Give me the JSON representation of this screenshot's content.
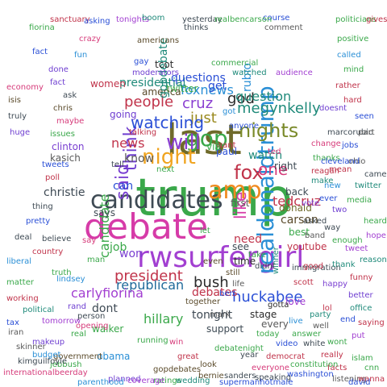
{
  "word_cloud": {
    "words": [
      {
        "text": "trump",
        "color": "#3aa84a"
      },
      {
        "text": "last",
        "color": "#6f6a2a"
      },
      {
        "text": "debate",
        "color": "#d63ba8"
      },
      {
        "text": "candidates",
        "color": "#3e4a54"
      },
      {
        "text": "rwsurfergirl",
        "color": "#a23fd1"
      },
      {
        "text": "amp",
        "color": "#f08a1f"
      },
      {
        "text": "gop",
        "color": "#3aa84a"
      },
      {
        "text": "night",
        "color": "#f0a41f"
      },
      {
        "text": "will",
        "color": "#8a3fd1"
      },
      {
        "text": "realdonaldtrump",
        "color": "#2a8fd6"
      },
      {
        "text": "nights",
        "color": "#7a8a2a"
      },
      {
        "text": "fox",
        "color": "#c0334a"
      },
      {
        "text": "god",
        "color": "#2a2a2a"
      },
      {
        "text": "megynkelly",
        "color": "#1f8a7a"
      },
      {
        "text": "just",
        "color": "#9a8a1f"
      },
      {
        "text": "one",
        "color": "#d63b7a"
      },
      {
        "text": "think",
        "color": "#6f3fd1"
      },
      {
        "text": "like",
        "color": "#d63ba8"
      },
      {
        "text": "said",
        "color": "#7a3fd1"
      },
      {
        "text": "watching",
        "color": "#2a4fd6"
      },
      {
        "text": "people",
        "color": "#c0334a"
      },
      {
        "text": "cruz",
        "color": "#8a3fd1"
      },
      {
        "text": "foxnews",
        "color": "#2a8fd6"
      },
      {
        "text": "question",
        "color": "#1f8a7a"
      },
      {
        "text": "republican",
        "color": "#1f6a9a"
      },
      {
        "text": "president",
        "color": "#c0334a"
      },
      {
        "text": "bush",
        "color": "#2a2a2a"
      },
      {
        "text": "hillary",
        "color": "#3aa84a"
      },
      {
        "text": "huckabee",
        "color": "#2a4fd6"
      },
      {
        "text": "carson",
        "color": "#5a4a2a"
      },
      {
        "text": "donald",
        "color": "#6f6a2a"
      },
      {
        "text": "tedcruz",
        "color": "#c0334a"
      },
      {
        "text": "tonight",
        "color": "#3e4a54"
      },
      {
        "text": "carlyfiorina",
        "color": "#a23fd1"
      },
      {
        "text": "watch",
        "color": "#1f8a7a"
      },
      {
        "text": "rubio",
        "color": "#2a8fd6"
      },
      {
        "text": "christie",
        "color": "#3e4a54"
      },
      {
        "text": "candidate",
        "color": "#3aa84a"
      },
      {
        "text": "news",
        "color": "#c0334a"
      },
      {
        "text": "know",
        "color": "#5a5a5a"
      },
      {
        "text": "can",
        "color": "#2a4fd6"
      },
      {
        "text": "dont",
        "color": "#3e4a54"
      },
      {
        "text": "won",
        "color": "#7a3fd1"
      },
      {
        "text": "need",
        "color": "#c0334a"
      },
      {
        "text": "job",
        "color": "#3aa84a"
      },
      {
        "text": "right",
        "color": "#3e4a54"
      },
      {
        "text": "first",
        "color": "#5a5a5a"
      },
      {
        "text": "time",
        "color": "#2a2a2a"
      },
      {
        "text": "debates",
        "color": "#c0334a"
      },
      {
        "text": "presidential",
        "color": "#1f8a7a"
      },
      {
        "text": "questions",
        "color": "#2a4fd6"
      },
      {
        "text": "twitter",
        "color": "#3aa84a"
      },
      {
        "text": "america",
        "color": "#5a4a2a"
      },
      {
        "text": "going",
        "color": "#6f3fd1"
      },
      {
        "text": "says",
        "color": "#3e4a54"
      },
      {
        "text": "stage",
        "color": "#2a2a2a"
      },
      {
        "text": "every",
        "color": "#5a5a5a"
      },
      {
        "text": "gopdebate",
        "color": "#1f8a7a"
      },
      {
        "text": "obama",
        "color": "#2a8fd6"
      },
      {
        "text": "women",
        "color": "#c0334a"
      },
      {
        "text": "support",
        "color": "#3e4a54"
      },
      {
        "text": "kasich",
        "color": "#5a5a5a"
      },
      {
        "text": "paul",
        "color": "#2a4fd6"
      },
      {
        "text": "walker",
        "color": "#3aa84a"
      },
      {
        "text": "clinton",
        "color": "#7a3fd1"
      },
      {
        "text": "best",
        "color": "#3aa84a"
      },
      {
        "text": "youtube",
        "color": "#c0334a"
      },
      {
        "text": "back",
        "color": "#3e4a54"
      },
      {
        "text": "make",
        "color": "#1f8a7a"
      },
      {
        "text": "tcot",
        "color": "#2a2a2a"
      },
      {
        "text": "see",
        "color": "#3e4a54"
      },
      {
        "text": "get",
        "color": "#2a4fd6"
      },
      {
        "text": "want",
        "color": "#c0334a"
      },
      {
        "text": "love",
        "color": "#a23fd1"
      },
      {
        "text": "today",
        "color": "#3aa84a"
      },
      {
        "text": "together",
        "color": "#5a4a2a"
      },
      {
        "text": "immigration",
        "color": "#3e4a54"
      },
      {
        "text": "moderators",
        "color": "#6f3fd1"
      },
      {
        "text": "winner",
        "color": "#1f8a7a"
      },
      {
        "text": "good",
        "color": "#c0334a"
      },
      {
        "text": "thanks",
        "color": "#3aa84a"
      },
      {
        "text": "change",
        "color": "#d63b7a"
      },
      {
        "text": "jobs",
        "color": "#2a4fd6"
      },
      {
        "text": "vote",
        "color": "#7a3fd1"
      },
      {
        "text": "band",
        "color": "#5a5a5a"
      },
      {
        "text": "asked",
        "color": "#3e4a54"
      },
      {
        "text": "enough",
        "color": "#3aa84a"
      },
      {
        "text": "scott",
        "color": "#c0334a"
      },
      {
        "text": "gotta",
        "color": "#2a2a2a"
      },
      {
        "text": "party",
        "color": "#1f8a7a"
      },
      {
        "text": "lol",
        "color": "#c0334a"
      },
      {
        "text": "video",
        "color": "#2a4fd6"
      },
      {
        "text": "debatenight",
        "color": "#3aa84a"
      },
      {
        "text": "gopdebates",
        "color": "#5a4a2a"
      },
      {
        "text": "opening",
        "color": "#d63b7a"
      },
      {
        "text": "rand",
        "color": "#6f3fd1"
      },
      {
        "text": "person",
        "color": "#3e4a54"
      },
      {
        "text": "real",
        "color": "#3aa84a"
      },
      {
        "text": "lindsey",
        "color": "#2a8fd6"
      },
      {
        "text": "great",
        "color": "#c0334a"
      },
      {
        "text": "mark",
        "color": "#5a5a5a"
      },
      {
        "text": "tell",
        "color": "#3e4a54"
      },
      {
        "text": "next",
        "color": "#3aa84a"
      },
      {
        "text": "happy",
        "color": "#7a3fd1"
      },
      {
        "text": "thank",
        "color": "#1f8a7a"
      },
      {
        "text": "mean",
        "color": "#c0334a"
      },
      {
        "text": "ever",
        "color": "#2a4fd6"
      },
      {
        "text": "even",
        "color": "#5a4a2a"
      },
      {
        "text": "take",
        "color": "#3aa84a"
      },
      {
        "text": "say",
        "color": "#d63b7a"
      },
      {
        "text": "way",
        "color": "#3e4a54"
      },
      {
        "text": "two",
        "color": "#6f3fd1"
      },
      {
        "text": "new",
        "color": "#2a8fd6"
      },
      {
        "text": "man",
        "color": "#3aa84a"
      },
      {
        "text": "reagan",
        "color": "#c0334a"
      },
      {
        "text": "cleveland",
        "color": "#2a4fd6"
      },
      {
        "text": "ohio",
        "color": "#5a5a5a"
      },
      {
        "text": "thing",
        "color": "#3e4a54"
      },
      {
        "text": "media",
        "color": "#3aa84a"
      },
      {
        "text": "tweet",
        "color": "#a23fd1"
      },
      {
        "text": "twitter",
        "color": "#1f8a7a"
      },
      {
        "text": "funny",
        "color": "#c0334a"
      },
      {
        "text": "pretty",
        "color": "#2a4fd6"
      },
      {
        "text": "running",
        "color": "#3aa84a"
      },
      {
        "text": "win",
        "color": "#d63b7a"
      },
      {
        "text": "look",
        "color": "#5a4a2a"
      },
      {
        "text": "year",
        "color": "#3e4a54"
      },
      {
        "text": "better",
        "color": "#6f3fd1"
      },
      {
        "text": "live",
        "color": "#2a8fd6"
      },
      {
        "text": "answer",
        "color": "#3aa84a"
      },
      {
        "text": "country",
        "color": "#c0334a"
      },
      {
        "text": "end",
        "color": "#2a4fd6"
      },
      {
        "text": "well",
        "color": "#5a5a5a"
      },
      {
        "text": "white",
        "color": "#3e4a54"
      },
      {
        "text": "wont",
        "color": "#3aa84a"
      },
      {
        "text": "put",
        "color": "#a23fd1"
      },
      {
        "text": "office",
        "color": "#1f8a7a"
      },
      {
        "text": "really",
        "color": "#c0334a"
      },
      {
        "text": "anyone",
        "color": "#2a4fd6"
      },
      {
        "text": "jebbush",
        "color": "#3aa84a"
      },
      {
        "text": "everyone",
        "color": "#d63b7a"
      },
      {
        "text": "still",
        "color": "#5a4a2a"
      },
      {
        "text": "didnt",
        "color": "#3e4a54"
      },
      {
        "text": "doesnt",
        "color": "#6f3fd1"
      },
      {
        "text": "got",
        "color": "#2a8fd6"
      },
      {
        "text": "let",
        "color": "#3aa84a"
      },
      {
        "text": "talking",
        "color": "#c0334a"
      },
      {
        "text": "ben",
        "color": "#2a4fd6"
      },
      {
        "text": "life",
        "color": "#5a5a5a"
      },
      {
        "text": "marcorubio",
        "color": "#3e4a54"
      },
      {
        "text": "commercial",
        "color": "#3aa84a"
      },
      {
        "text": "audience",
        "color": "#a23fd1"
      },
      {
        "text": "watched",
        "color": "#1f8a7a"
      },
      {
        "text": "rather",
        "color": "#c0334a"
      },
      {
        "text": "gay",
        "color": "#2a4fd6"
      },
      {
        "text": "via",
        "color": "#3aa84a"
      },
      {
        "text": "ted",
        "color": "#d63b7a"
      },
      {
        "text": "americans",
        "color": "#5a4a2a"
      },
      {
        "text": "thinks",
        "color": "#3e4a54"
      },
      {
        "text": "done",
        "color": "#6f3fd1"
      },
      {
        "text": "fun",
        "color": "#2a8fd6"
      },
      {
        "text": "politicians",
        "color": "#3aa84a"
      },
      {
        "text": "gives",
        "color": "#c0334a"
      },
      {
        "text": "course",
        "color": "#2a4fd6"
      },
      {
        "text": "comment",
        "color": "#5a5a5a"
      },
      {
        "text": "yesterday",
        "color": "#3e4a54"
      },
      {
        "text": "realbencarson",
        "color": "#3aa84a"
      },
      {
        "text": "tonights",
        "color": "#a23fd1"
      },
      {
        "text": "boom",
        "color": "#1f8a7a"
      },
      {
        "text": "sanctuary",
        "color": "#c0334a"
      },
      {
        "text": "asking",
        "color": "#2a4fd6"
      },
      {
        "text": "fiorina",
        "color": "#3aa84a"
      },
      {
        "text": "crazy",
        "color": "#d63b7a"
      },
      {
        "text": "bernie",
        "color": "#5a4a2a"
      },
      {
        "text": "sanders",
        "color": "#3e4a54"
      },
      {
        "text": "planned",
        "color": "#6f3fd1"
      },
      {
        "text": "parenthood",
        "color": "#2a8fd6"
      },
      {
        "text": "islam",
        "color": "#3aa84a"
      },
      {
        "text": "facts",
        "color": "#c0334a"
      },
      {
        "text": "washington",
        "color": "#2a4fd6"
      },
      {
        "text": "listening",
        "color": "#5a5a5a"
      },
      {
        "text": "speaking",
        "color": "#3e4a54"
      },
      {
        "text": "ratings",
        "color": "#3aa84a"
      },
      {
        "text": "coverage",
        "color": "#a23fd1"
      },
      {
        "text": "wedding",
        "color": "#1f8a7a"
      },
      {
        "text": "democrat",
        "color": "#c0334a"
      },
      {
        "text": "supermanhotmale",
        "color": "#2a4fd6"
      },
      {
        "text": "constitution",
        "color": "#3aa84a"
      },
      {
        "text": "internationalbeerday",
        "color": "#d63b7a"
      },
      {
        "text": "government",
        "color": "#5a4a2a"
      },
      {
        "text": "kimguilfoyle",
        "color": "#3e4a54"
      },
      {
        "text": "makeup",
        "color": "#6f3fd1"
      },
      {
        "text": "budget",
        "color": "#2a8fd6"
      },
      {
        "text": "cnn",
        "color": "#3aa84a"
      },
      {
        "text": "wanna",
        "color": "#c0334a"
      },
      {
        "text": "david",
        "color": "#2a4fd6"
      },
      {
        "text": "skinner",
        "color": "#5a5a5a"
      },
      {
        "text": "believe",
        "color": "#3e4a54"
      },
      {
        "text": "truth",
        "color": "#3aa84a"
      },
      {
        "text": "tomorrow",
        "color": "#a23fd1"
      },
      {
        "text": "political",
        "color": "#1f8a7a"
      },
      {
        "text": "poll",
        "color": "#c0334a"
      },
      {
        "text": "tweets",
        "color": "#2a4fd6"
      },
      {
        "text": "issues",
        "color": "#3aa84a"
      },
      {
        "text": "maybe",
        "color": "#d63b7a"
      },
      {
        "text": "chris",
        "color": "#5a4a2a"
      },
      {
        "text": "ask",
        "color": "#3e4a54"
      },
      {
        "text": "fact",
        "color": "#6f3fd1"
      },
      {
        "text": "called",
        "color": "#2a8fd6"
      },
      {
        "text": "mind",
        "color": "#3aa84a"
      },
      {
        "text": "hard",
        "color": "#c0334a"
      },
      {
        "text": "seen",
        "color": "#2a4fd6"
      },
      {
        "text": "part",
        "color": "#5a5a5a"
      },
      {
        "text": "came",
        "color": "#3e4a54"
      },
      {
        "text": "heard",
        "color": "#3aa84a"
      },
      {
        "text": "hope",
        "color": "#a23fd1"
      },
      {
        "text": "reason",
        "color": "#1f8a7a"
      },
      {
        "text": "saying",
        "color": "#c0334a"
      },
      {
        "text": "fact",
        "color": "#2a4fd6"
      },
      {
        "text": "positive",
        "color": "#3aa84a"
      },
      {
        "text": "economy",
        "color": "#d63b7a"
      },
      {
        "text": "isis",
        "color": "#5a4a2a"
      },
      {
        "text": "truly",
        "color": "#3e4a54"
      },
      {
        "text": "huge",
        "color": "#6f3fd1"
      },
      {
        "text": "liberal",
        "color": "#2a8fd6"
      },
      {
        "text": "matter",
        "color": "#3aa84a"
      },
      {
        "text": "working",
        "color": "#c0334a"
      },
      {
        "text": "tax",
        "color": "#2a4fd6"
      },
      {
        "text": "iran",
        "color": "#5a5a5a"
      },
      {
        "text": "deal",
        "color": "#3e4a54"
      }
    ]
  }
}
